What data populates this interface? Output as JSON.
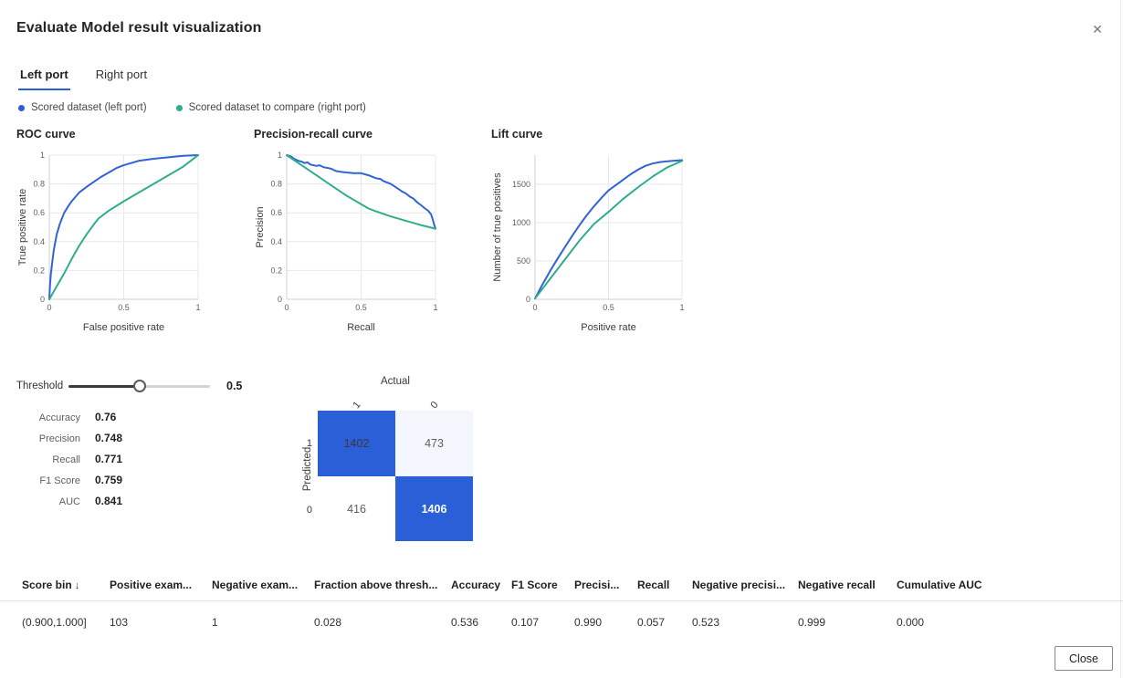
{
  "dialog": {
    "title": "Evaluate Model result visualization",
    "close_icon": "✕"
  },
  "colors": {
    "accent": "#2b5cd9",
    "curve_blue": "#3064d4",
    "curve_green": "#2fae8c",
    "matrix_blue": "#2a5fd7"
  },
  "tabs": [
    {
      "label": "Left port",
      "active": true
    },
    {
      "label": "Right port",
      "active": false
    }
  ],
  "legend": [
    {
      "label": "Scored dataset (left port)",
      "color": "#2b5cd9"
    },
    {
      "label": "Scored dataset to compare (right port)",
      "color": "#2fae8c"
    }
  ],
  "chart_data": [
    {
      "type": "line",
      "title": "ROC curve",
      "xlabel": "False positive rate",
      "ylabel": "True positive rate",
      "xlim": [
        0,
        1
      ],
      "ylim": [
        0,
        1
      ],
      "xticks": [
        0,
        0.5,
        1
      ],
      "xtick_labels": [
        "0",
        "0.5",
        "1"
      ],
      "yticks": [
        0,
        0.2,
        0.4,
        0.6,
        0.8,
        1
      ],
      "ytick_labels": [
        "0",
        "0.2",
        "0.4",
        "0.6",
        "0.8",
        "1"
      ],
      "grid": true,
      "legend_position": "none",
      "series": [
        {
          "name": "Scored dataset (left port)",
          "color": "#3064d4",
          "points": [
            [
              0,
              0
            ],
            [
              0.005,
              0.1
            ],
            [
              0.01,
              0.17
            ],
            [
              0.02,
              0.26
            ],
            [
              0.03,
              0.34
            ],
            [
              0.05,
              0.45
            ],
            [
              0.07,
              0.52
            ],
            [
              0.1,
              0.6
            ],
            [
              0.13,
              0.65
            ],
            [
              0.15,
              0.68
            ],
            [
              0.2,
              0.74
            ],
            [
              0.25,
              0.78
            ],
            [
              0.3,
              0.815
            ],
            [
              0.35,
              0.85
            ],
            [
              0.4,
              0.88
            ],
            [
              0.45,
              0.91
            ],
            [
              0.5,
              0.93
            ],
            [
              0.55,
              0.945
            ],
            [
              0.6,
              0.96
            ],
            [
              0.7,
              0.975
            ],
            [
              0.8,
              0.985
            ],
            [
              0.9,
              0.995
            ],
            [
              1,
              1
            ]
          ]
        },
        {
          "name": "Scored dataset to compare (right port)",
          "color": "#2fae8c",
          "points": [
            [
              0,
              0
            ],
            [
              0.05,
              0.09
            ],
            [
              0.1,
              0.18
            ],
            [
              0.15,
              0.28
            ],
            [
              0.2,
              0.37
            ],
            [
              0.25,
              0.45
            ],
            [
              0.3,
              0.52
            ],
            [
              0.33,
              0.56
            ],
            [
              0.4,
              0.615
            ],
            [
              0.5,
              0.68
            ],
            [
              0.6,
              0.74
            ],
            [
              0.7,
              0.8
            ],
            [
              0.8,
              0.86
            ],
            [
              0.9,
              0.92
            ],
            [
              0.95,
              0.96
            ],
            [
              1,
              1
            ]
          ]
        }
      ]
    },
    {
      "type": "line",
      "title": "Precision-recall curve",
      "xlabel": "Recall",
      "ylabel": "Precision",
      "xlim": [
        0,
        1
      ],
      "ylim": [
        0,
        1
      ],
      "xticks": [
        0,
        0.5,
        1
      ],
      "xtick_labels": [
        "0",
        "0.5",
        "1"
      ],
      "yticks": [
        0,
        0.2,
        0.4,
        0.6,
        0.8,
        1
      ],
      "ytick_labels": [
        "0",
        "0.2",
        "0.4",
        "0.6",
        "0.8",
        "1"
      ],
      "grid": true,
      "legend_position": "none",
      "series": [
        {
          "name": "Scored dataset (left port)",
          "color": "#3064d4",
          "points": [
            [
              0,
              1
            ],
            [
              0.03,
              0.99
            ],
            [
              0.05,
              0.975
            ],
            [
              0.08,
              0.96
            ],
            [
              0.1,
              0.955
            ],
            [
              0.12,
              0.945
            ],
            [
              0.14,
              0.95
            ],
            [
              0.16,
              0.935
            ],
            [
              0.18,
              0.93
            ],
            [
              0.2,
              0.925
            ],
            [
              0.22,
              0.93
            ],
            [
              0.25,
              0.915
            ],
            [
              0.28,
              0.91
            ],
            [
              0.3,
              0.905
            ],
            [
              0.33,
              0.89
            ],
            [
              0.36,
              0.885
            ],
            [
              0.4,
              0.88
            ],
            [
              0.45,
              0.875
            ],
            [
              0.5,
              0.875
            ],
            [
              0.55,
              0.86
            ],
            [
              0.6,
              0.84
            ],
            [
              0.63,
              0.835
            ],
            [
              0.65,
              0.82
            ],
            [
              0.7,
              0.8
            ],
            [
              0.73,
              0.78
            ],
            [
              0.75,
              0.765
            ],
            [
              0.78,
              0.745
            ],
            [
              0.8,
              0.735
            ],
            [
              0.83,
              0.71
            ],
            [
              0.85,
              0.7
            ],
            [
              0.88,
              0.67
            ],
            [
              0.9,
              0.655
            ],
            [
              0.93,
              0.63
            ],
            [
              0.95,
              0.615
            ],
            [
              0.97,
              0.59
            ],
            [
              0.98,
              0.56
            ],
            [
              0.99,
              0.52
            ],
            [
              1,
              0.49
            ]
          ]
        },
        {
          "name": "Scored dataset to compare (right port)",
          "color": "#2fae8c",
          "points": [
            [
              0,
              1
            ],
            [
              0.1,
              0.93
            ],
            [
              0.2,
              0.86
            ],
            [
              0.3,
              0.79
            ],
            [
              0.4,
              0.72
            ],
            [
              0.5,
              0.66
            ],
            [
              0.55,
              0.63
            ],
            [
              0.6,
              0.61
            ],
            [
              0.7,
              0.575
            ],
            [
              0.8,
              0.545
            ],
            [
              0.9,
              0.515
            ],
            [
              1,
              0.49
            ]
          ]
        }
      ]
    },
    {
      "type": "line",
      "title": "Lift curve",
      "xlabel": "Positive rate",
      "ylabel": "Number of true positives",
      "xlim": [
        0,
        1
      ],
      "ylim": [
        0,
        1880
      ],
      "xticks": [
        0,
        0.5,
        1
      ],
      "xtick_labels": [
        "0",
        "0.5",
        "1"
      ],
      "yticks": [
        0,
        500,
        1000,
        1500
      ],
      "ytick_labels": [
        "0",
        "500",
        "1000",
        "1500"
      ],
      "grid": true,
      "legend_position": "none",
      "series": [
        {
          "name": "Scored dataset (left port)",
          "color": "#3064d4",
          "points": [
            [
              0,
              10
            ],
            [
              0.05,
              190
            ],
            [
              0.1,
              360
            ],
            [
              0.15,
              520
            ],
            [
              0.2,
              670
            ],
            [
              0.25,
              820
            ],
            [
              0.3,
              960
            ],
            [
              0.35,
              1090
            ],
            [
              0.4,
              1210
            ],
            [
              0.45,
              1320
            ],
            [
              0.5,
              1420
            ],
            [
              0.55,
              1490
            ],
            [
              0.6,
              1560
            ],
            [
              0.65,
              1630
            ],
            [
              0.7,
              1690
            ],
            [
              0.75,
              1740
            ],
            [
              0.8,
              1770
            ],
            [
              0.85,
              1790
            ],
            [
              0.9,
              1800
            ],
            [
              1,
              1815
            ]
          ]
        },
        {
          "name": "Scored dataset to compare (right port)",
          "color": "#2fae8c",
          "points": [
            [
              0,
              10
            ],
            [
              0.1,
              260
            ],
            [
              0.2,
              510
            ],
            [
              0.3,
              760
            ],
            [
              0.4,
              980
            ],
            [
              0.5,
              1140
            ],
            [
              0.6,
              1310
            ],
            [
              0.7,
              1460
            ],
            [
              0.8,
              1600
            ],
            [
              0.9,
              1720
            ],
            [
              1,
              1805
            ]
          ]
        }
      ]
    }
  ],
  "threshold": {
    "label": "Threshold",
    "value": "0.5",
    "percent": 50
  },
  "metrics": [
    {
      "label": "Accuracy",
      "value": "0.76"
    },
    {
      "label": "Precision",
      "value": "0.748"
    },
    {
      "label": "Recall",
      "value": "0.771"
    },
    {
      "label": "F1 Score",
      "value": "0.759"
    },
    {
      "label": "AUC",
      "value": "0.841"
    }
  ],
  "confusion_matrix": {
    "x_axis_label": "Actual",
    "y_axis_label": "Predicted",
    "col_labels": [
      "1",
      "0"
    ],
    "row_labels": [
      "1",
      "0"
    ],
    "cells": [
      {
        "value": "1402",
        "bg": "#2a5fd7",
        "fg": "#3b3a39"
      },
      {
        "value": "473",
        "bg": "#f3f6fc",
        "fg": "#605e5c"
      },
      {
        "value": "416",
        "bg": "#ffffff",
        "fg": "#605e5c"
      },
      {
        "value": "1406",
        "bg": "#2a5fd7",
        "fg": "#ffffff"
      }
    ]
  },
  "table": {
    "sort_icon": "↓",
    "columns": [
      "Score bin",
      "Positive exam...",
      "Negative exam...",
      "Fraction above thresh...",
      "Accuracy",
      "F1 Score",
      "Precisi...",
      "Recall",
      "Negative precisi...",
      "Negative recall",
      "Cumulative AUC"
    ],
    "rows": [
      [
        "(0.900,1.000]",
        "103",
        "1",
        "0.028",
        "0.536",
        "0.107",
        "0.990",
        "0.057",
        "0.523",
        "0.999",
        "0.000"
      ]
    ]
  },
  "footer": {
    "close_label": "Close"
  }
}
